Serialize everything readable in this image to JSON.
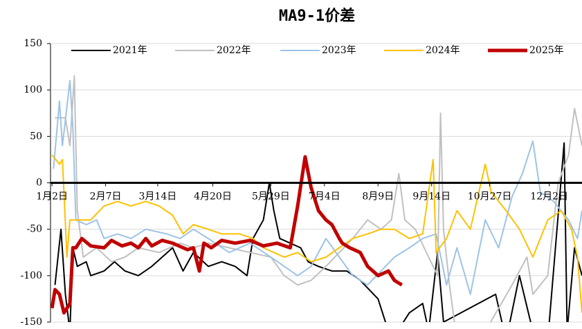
{
  "chart_data": {
    "type": "line",
    "title": "MA9-1价差",
    "xlim": [
      1,
      358
    ],
    "ylim": [
      -150,
      150
    ],
    "yticks": [
      -150,
      -100,
      -50,
      0,
      50,
      100,
      150
    ],
    "xticks": [
      {
        "value": 2,
        "label": "1月2日"
      },
      {
        "value": 38,
        "label": "2月7日"
      },
      {
        "value": 73,
        "label": "3月14日"
      },
      {
        "value": 110,
        "label": "4月20日"
      },
      {
        "value": 149,
        "label": "5月29日"
      },
      {
        "value": 185,
        "label": "7月4日"
      },
      {
        "value": 221,
        "label": "8月9日"
      },
      {
        "value": 257,
        "label": "9月14日"
      },
      {
        "value": 296,
        "label": "10月27日"
      },
      {
        "value": 336,
        "label": "12月2日"
      }
    ],
    "grid": true,
    "legend": "top",
    "series": [
      {
        "name": "2021年",
        "color": "#000000",
        "width": 2,
        "x": [
          4,
          8,
          11,
          14,
          16,
          19,
          25,
          28,
          37,
          44,
          51,
          60,
          69,
          76,
          83,
          90,
          97,
          107,
          116,
          125,
          133,
          137,
          144,
          148,
          151,
          155,
          162,
          169,
          174,
          181,
          190,
          200,
          209,
          221,
          230,
          242,
          251,
          255,
          261,
          265,
          300,
          307,
          316,
          325,
          335,
          346,
          348,
          353,
          358
        ],
        "values": [
          -110,
          -50,
          -120,
          -160,
          -70,
          -90,
          -85,
          -100,
          -95,
          -85,
          -95,
          -100,
          -90,
          -80,
          -70,
          -95,
          -75,
          -90,
          -85,
          -90,
          -100,
          -60,
          -40,
          0,
          -30,
          -60,
          -65,
          -70,
          -85,
          -90,
          -95,
          -95,
          -105,
          -125,
          -170,
          -140,
          -130,
          -160,
          -75,
          -150,
          -120,
          -170,
          -100,
          -160,
          -170,
          43,
          -160,
          -70,
          -100
        ]
      },
      {
        "name": "2022年",
        "color": "#c0c0c0",
        "width": 2,
        "x": [
          4,
          11,
          14,
          17,
          19,
          23,
          32,
          42,
          51,
          60,
          74,
          88,
          97,
          107,
          121,
          135,
          149,
          158,
          167,
          176,
          186,
          195,
          204,
          214,
          223,
          230,
          235,
          239,
          246,
          255,
          261,
          263,
          265,
          269,
          274,
          293,
          311,
          321,
          325,
          335,
          342,
          349,
          353,
          358
        ],
        "values": [
          70,
          70,
          40,
          115,
          -30,
          -80,
          -70,
          -85,
          -80,
          -70,
          -75,
          -65,
          -70,
          -65,
          -70,
          -75,
          -80,
          -100,
          -110,
          -105,
          -90,
          -75,
          -60,
          -40,
          -50,
          -40,
          10,
          -40,
          -50,
          -80,
          -100,
          75,
          -50,
          -110,
          -170,
          -160,
          -110,
          -80,
          -120,
          -100,
          0,
          30,
          80,
          40
        ]
      },
      {
        "name": "2023年",
        "color": "#9dc3e6",
        "width": 2,
        "x": [
          3,
          7,
          9,
          14,
          16,
          18,
          25,
          32,
          37,
          46,
          55,
          65,
          79,
          88,
          97,
          107,
          121,
          135,
          149,
          158,
          167,
          176,
          186,
          195,
          204,
          214,
          223,
          232,
          242,
          251,
          260,
          267,
          274,
          283,
          293,
          302,
          311,
          318,
          325,
          330,
          339,
          349,
          355,
          358
        ],
        "values": [
          15,
          88,
          40,
          110,
          60,
          -40,
          -45,
          -40,
          -60,
          -55,
          -60,
          -50,
          -55,
          -60,
          -50,
          -60,
          -75,
          -65,
          -80,
          -90,
          -100,
          -90,
          -60,
          -80,
          -100,
          -110,
          -95,
          -80,
          -70,
          -60,
          -55,
          -110,
          -70,
          -120,
          -40,
          -70,
          -15,
          10,
          45,
          -10,
          -20,
          -40,
          -60,
          -30
        ]
      },
      {
        "name": "2024年",
        "color": "#ffc000",
        "width": 2,
        "x": [
          2,
          7,
          9,
          10,
          12,
          14,
          18,
          28,
          37,
          46,
          55,
          65,
          74,
          83,
          90,
          97,
          107,
          116,
          128,
          137,
          144,
          151,
          158,
          167,
          176,
          186,
          195,
          204,
          214,
          223,
          232,
          242,
          251,
          258,
          260,
          267,
          274,
          283,
          293,
          297,
          307,
          316,
          325,
          335,
          344,
          351,
          355,
          358
        ],
        "values": [
          30,
          20,
          25,
          -10,
          -80,
          -40,
          -40,
          -40,
          -25,
          -20,
          -25,
          -20,
          -25,
          -35,
          -55,
          -45,
          -50,
          -55,
          -55,
          -60,
          -70,
          -75,
          -80,
          -75,
          -85,
          -80,
          -70,
          -60,
          -55,
          -50,
          -50,
          -60,
          -55,
          25,
          -75,
          -60,
          -30,
          -50,
          20,
          -10,
          -30,
          -50,
          -80,
          -40,
          -30,
          -50,
          -80,
          -140
        ]
      },
      {
        "name": "2025年",
        "color": "#c00000",
        "width": 5,
        "x": [
          2,
          4,
          7,
          10,
          14,
          16,
          18,
          22,
          28,
          37,
          42,
          49,
          55,
          60,
          65,
          69,
          76,
          83,
          93,
          97,
          101,
          104,
          109,
          116,
          125,
          135,
          144,
          153,
          162,
          167,
          172,
          176,
          181,
          186,
          190,
          195,
          197,
          202,
          209,
          214,
          221,
          228,
          232,
          237
        ],
        "values": [
          -135,
          -115,
          -120,
          -140,
          -130,
          -70,
          -70,
          -60,
          -68,
          -70,
          -62,
          -68,
          -65,
          -70,
          -60,
          -68,
          -62,
          -65,
          -72,
          -70,
          -95,
          -65,
          -70,
          -62,
          -65,
          -62,
          -68,
          -65,
          -70,
          -25,
          28,
          -5,
          -30,
          -40,
          -45,
          -60,
          -65,
          -70,
          -75,
          -90,
          -100,
          -95,
          -105,
          -110
        ]
      }
    ]
  }
}
